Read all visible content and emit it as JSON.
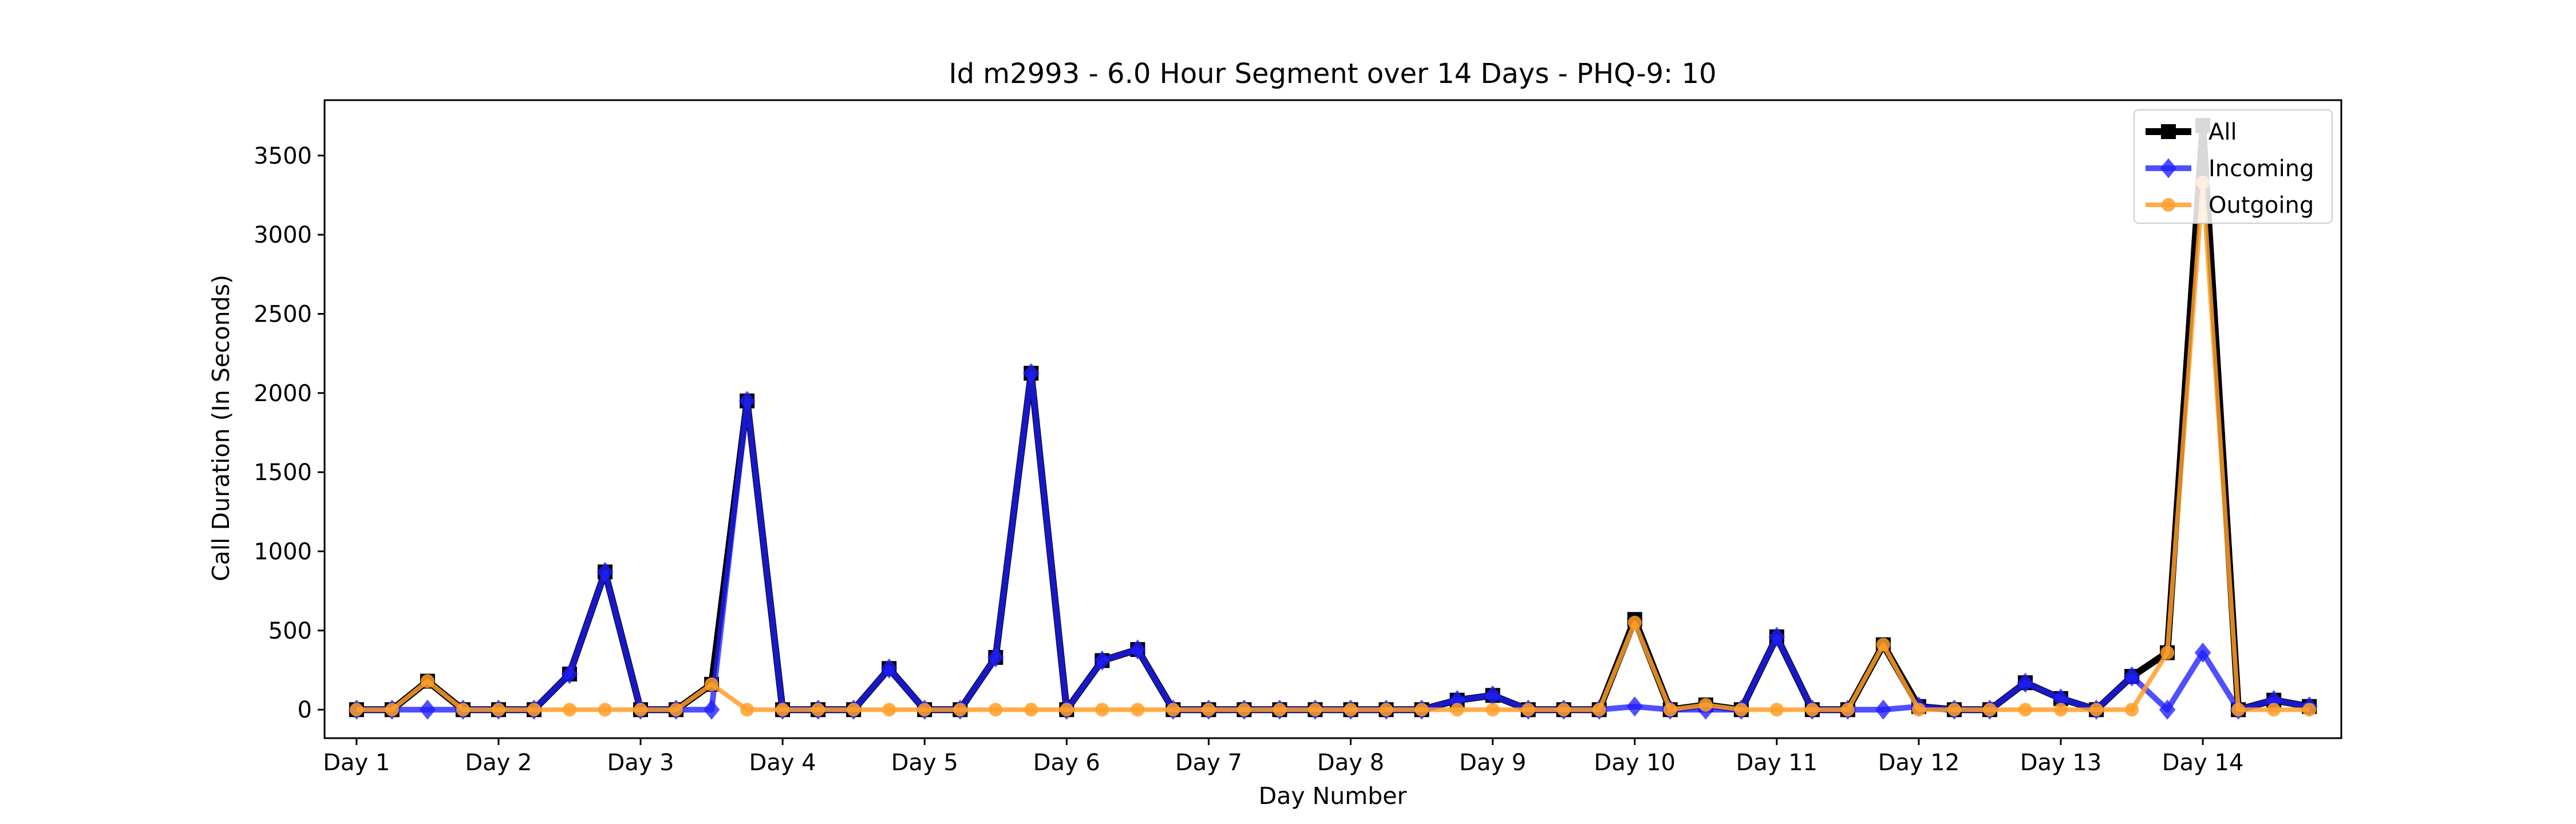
{
  "chart_data": {
    "type": "line",
    "title": "Id m2993 - 6.0 Hour Segment over 14 Days - PHQ-9: 10",
    "xlabel": "Day Number",
    "ylabel": "Call Duration (In Seconds)",
    "ylim": [
      -180,
      3850
    ],
    "yticks": [
      0,
      500,
      1000,
      1500,
      2000,
      2500,
      3000,
      3500
    ],
    "xlim": [
      -0.9,
      55.9
    ],
    "xtick_positions": [
      0,
      4,
      8,
      12,
      16,
      20,
      24,
      28,
      32,
      36,
      40,
      44,
      48,
      52
    ],
    "xtick_labels": [
      "Day 1",
      "Day 2",
      "Day 3",
      "Day 4",
      "Day 5",
      "Day 6",
      "Day 7",
      "Day 8",
      "Day 9",
      "Day 10",
      "Day 11",
      "Day 12",
      "Day 13",
      "Day 14"
    ],
    "grid": false,
    "legend_position": "top-right",
    "x": [
      0,
      1,
      2,
      3,
      4,
      5,
      6,
      7,
      8,
      9,
      10,
      11,
      12,
      13,
      14,
      15,
      16,
      17,
      18,
      19,
      20,
      21,
      22,
      23,
      24,
      25,
      26,
      27,
      28,
      29,
      30,
      31,
      32,
      33,
      34,
      35,
      36,
      37,
      38,
      39,
      40,
      41,
      42,
      43,
      44,
      45,
      46,
      47,
      48,
      49,
      50,
      51,
      52,
      53,
      54,
      55
    ],
    "series": [
      {
        "name": "All",
        "color": "#000000",
        "marker": "square",
        "values": [
          0,
          0,
          180,
          0,
          0,
          0,
          225,
          870,
          0,
          0,
          160,
          1950,
          0,
          0,
          0,
          260,
          0,
          0,
          330,
          2125,
          0,
          310,
          380,
          0,
          0,
          0,
          0,
          0,
          0,
          0,
          0,
          60,
          90,
          0,
          0,
          0,
          570,
          0,
          30,
          0,
          460,
          0,
          0,
          410,
          20,
          0,
          0,
          170,
          70,
          0,
          210,
          360,
          3690,
          0,
          60,
          20
        ]
      },
      {
        "name": "Incoming",
        "color": "#1f1fff",
        "marker": "diamond",
        "values": [
          0,
          0,
          0,
          0,
          0,
          0,
          225,
          870,
          0,
          0,
          0,
          1950,
          0,
          0,
          0,
          260,
          0,
          0,
          330,
          2125,
          0,
          310,
          380,
          0,
          0,
          0,
          0,
          0,
          0,
          0,
          0,
          60,
          90,
          0,
          0,
          0,
          20,
          0,
          0,
          0,
          460,
          0,
          0,
          0,
          20,
          0,
          0,
          170,
          70,
          0,
          210,
          0,
          360,
          0,
          60,
          20
        ]
      },
      {
        "name": "Outgoing",
        "color": "#ff9f29",
        "marker": "circle",
        "values": [
          0,
          0,
          180,
          0,
          0,
          0,
          0,
          0,
          0,
          0,
          160,
          0,
          0,
          0,
          0,
          0,
          0,
          0,
          0,
          0,
          0,
          0,
          0,
          0,
          0,
          0,
          0,
          0,
          0,
          0,
          0,
          0,
          0,
          0,
          0,
          0,
          550,
          0,
          30,
          0,
          0,
          0,
          0,
          410,
          0,
          0,
          0,
          0,
          0,
          0,
          0,
          360,
          3330,
          0,
          0,
          0
        ]
      }
    ]
  }
}
